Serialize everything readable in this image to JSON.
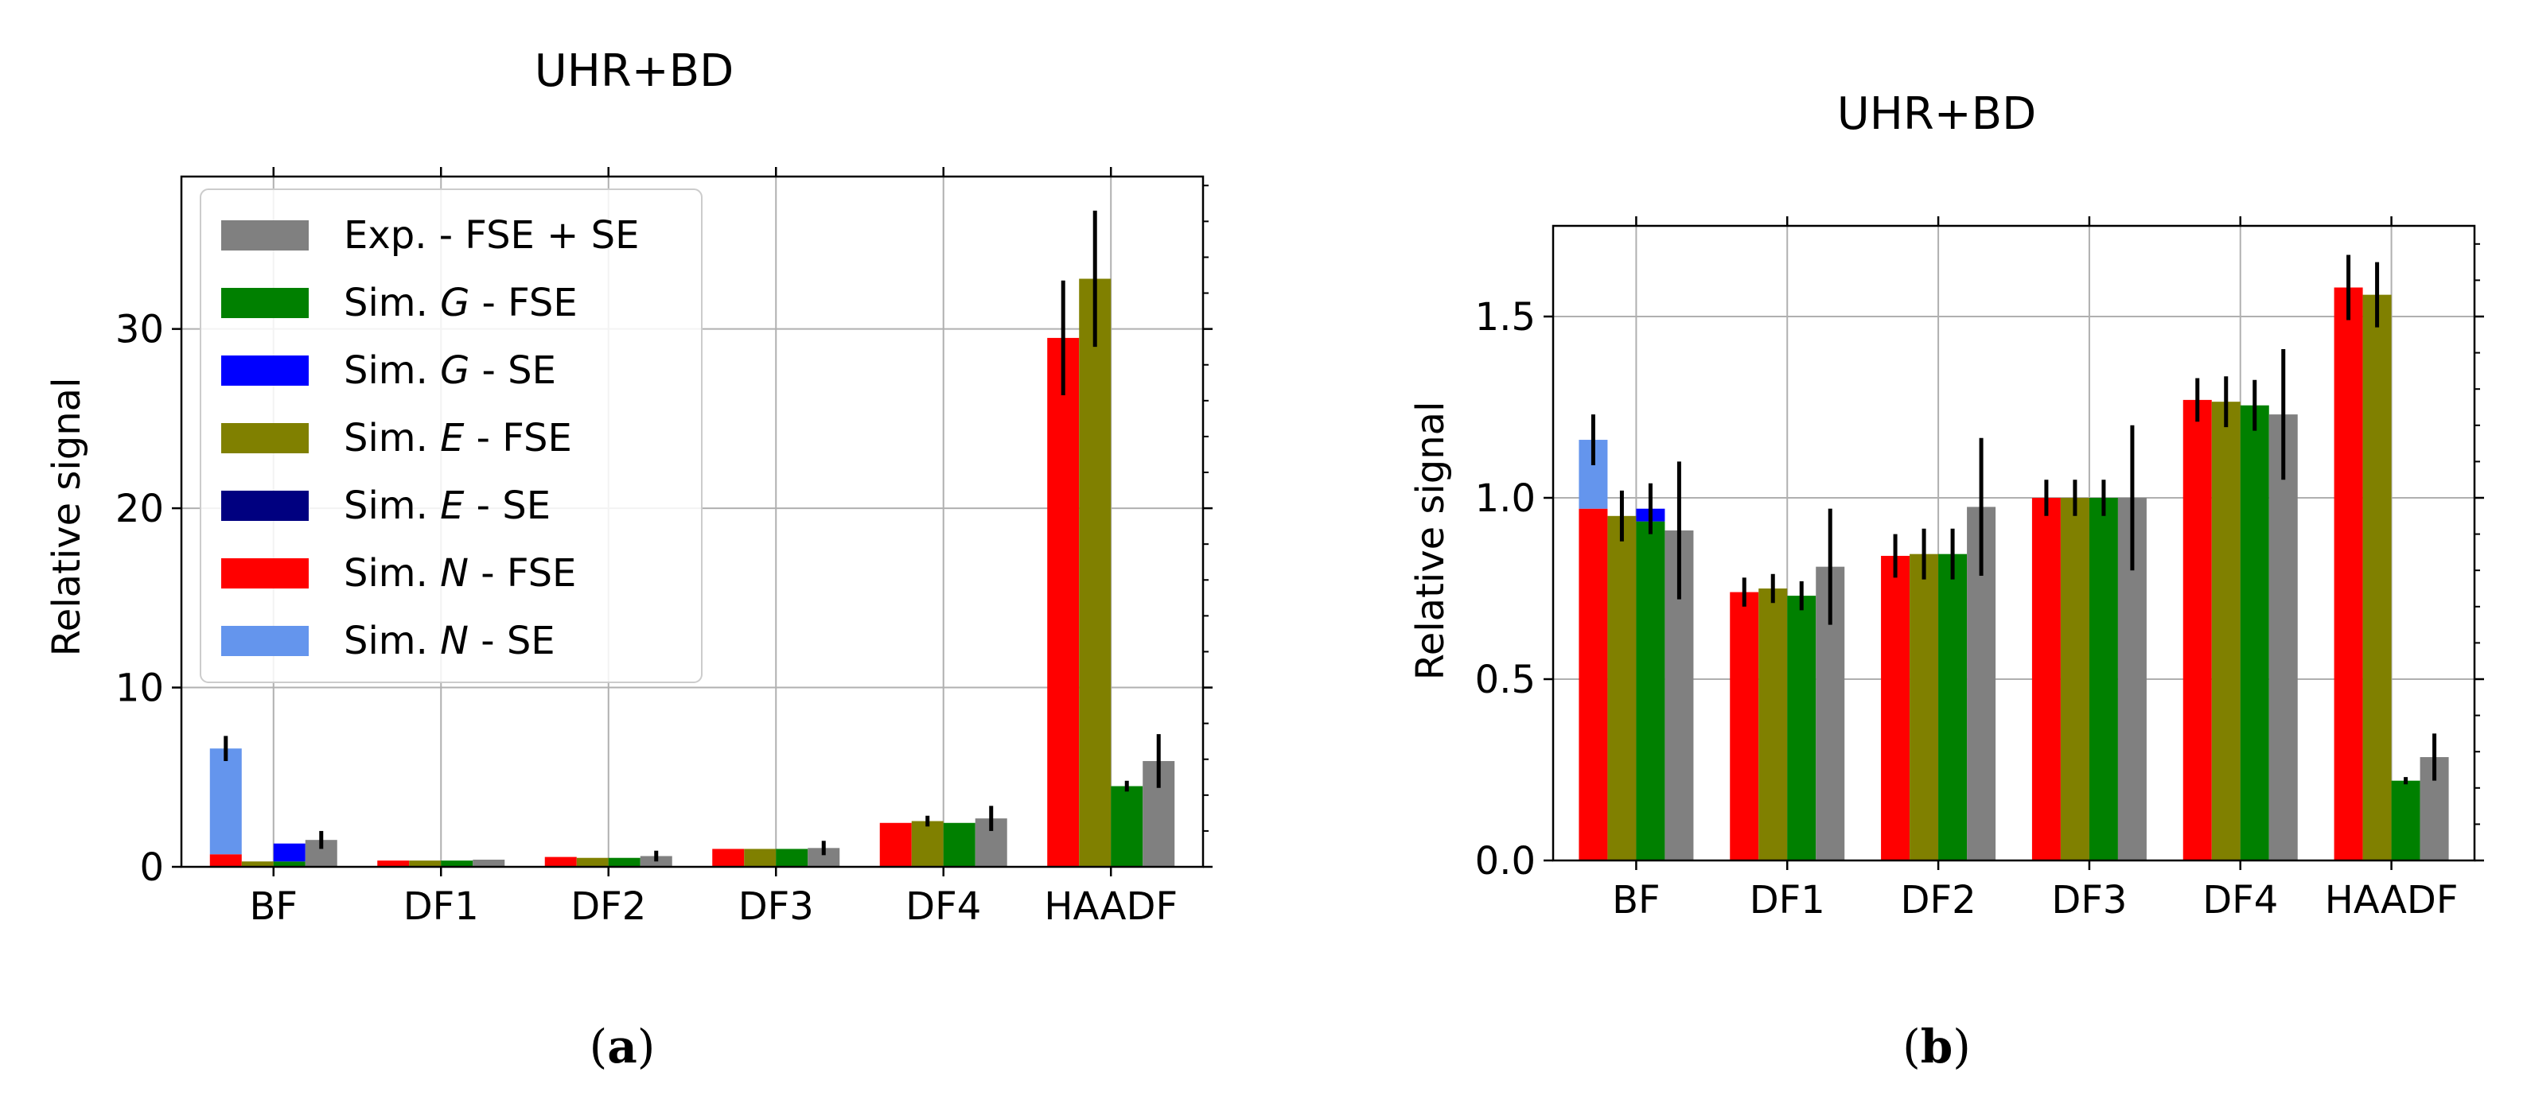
{
  "colors": {
    "exp_fse_se": "#808080",
    "sim_g_fse": "#008000",
    "sim_g_se": "#0000ff",
    "sim_e_fse": "#808000",
    "sim_e_se": "#000080",
    "sim_n_fse": "#ff0000",
    "sim_n_se": "#6495ed",
    "error_bar": "#000000",
    "grid": "#b0b0b0"
  },
  "legend": [
    {
      "key": "exp_fse_se",
      "prefix": "Exp. - FSE + SE",
      "var": "",
      "suffix": ""
    },
    {
      "key": "sim_g_fse",
      "prefix": "Sim. ",
      "var": "G",
      "suffix": " - FSE"
    },
    {
      "key": "sim_g_se",
      "prefix": "Sim. ",
      "var": "G",
      "suffix": " - SE"
    },
    {
      "key": "sim_e_fse",
      "prefix": "Sim. ",
      "var": "E",
      "suffix": " - FSE"
    },
    {
      "key": "sim_e_se",
      "prefix": "Sim. ",
      "var": "E",
      "suffix": " - SE"
    },
    {
      "key": "sim_n_fse",
      "prefix": "Sim. ",
      "var": "N",
      "suffix": " - FSE"
    },
    {
      "key": "sim_n_se",
      "prefix": "Sim. ",
      "var": "N",
      "suffix": " - SE"
    }
  ],
  "chart_data": [
    {
      "panel": "(a)",
      "panel_letter": "a",
      "type": "bar",
      "title": "UHR+BD",
      "ylabel": "Relative signal",
      "xlabel": "",
      "ylim": [
        0,
        38.5
      ],
      "yticks": [
        0,
        10,
        20,
        30
      ],
      "ytick_labels": [
        "0",
        "10",
        "20",
        "30"
      ],
      "grid": true,
      "legend_location": "upper-left",
      "categories": [
        "BF",
        "DF1",
        "DF2",
        "DF3",
        "DF4",
        "HAADF"
      ],
      "series": [
        {
          "name": "Sim. N",
          "fse_key": "sim_n_fse",
          "se_key": "sim_n_se",
          "fse": [
            0.7,
            0.35,
            0.55,
            1.0,
            2.45,
            29.5
          ],
          "se": [
            5.9,
            0,
            0,
            0,
            0,
            0
          ],
          "err": [
            0.7,
            0,
            0,
            0,
            0,
            3.2
          ]
        },
        {
          "name": "Sim. E",
          "fse_key": "sim_e_fse",
          "se_key": "sim_e_se",
          "fse": [
            0.3,
            0.35,
            0.5,
            1.0,
            2.55,
            32.8
          ],
          "se": [
            0,
            0,
            0,
            0,
            0,
            0
          ],
          "err": [
            0,
            0,
            0,
            0,
            0.3,
            3.8
          ]
        },
        {
          "name": "Sim. G",
          "fse_key": "sim_g_fse",
          "se_key": "sim_g_se",
          "fse": [
            0.3,
            0.35,
            0.5,
            1.0,
            2.45,
            4.5
          ],
          "se": [
            1.0,
            0,
            0,
            0,
            0,
            0
          ],
          "err": [
            0,
            0,
            0,
            0,
            0,
            0.3
          ]
        },
        {
          "name": "Exp.",
          "fse_key": "exp_fse_se",
          "se_key": "exp_fse_se",
          "fse": [
            1.5,
            0.4,
            0.6,
            1.05,
            2.7,
            5.9
          ],
          "se": [
            0,
            0,
            0,
            0,
            0,
            0
          ],
          "err": [
            0.5,
            0,
            0.3,
            0.4,
            0.7,
            1.5
          ]
        }
      ]
    },
    {
      "panel": "(b)",
      "panel_letter": "b",
      "type": "bar",
      "title": "UHR+BD",
      "ylabel": "Relative signal",
      "xlabel": "",
      "ylim": [
        0,
        1.75
      ],
      "yticks": [
        0,
        0.5,
        1.0,
        1.5
      ],
      "ytick_labels": [
        "0.0",
        "0.5",
        "1.0",
        "1.5"
      ],
      "grid": true,
      "categories": [
        "BF",
        "DF1",
        "DF2",
        "DF3",
        "DF4",
        "HAADF"
      ],
      "series": [
        {
          "name": "Sim. N",
          "fse_key": "sim_n_fse",
          "se_key": "sim_n_se",
          "fse": [
            0.97,
            0.74,
            0.84,
            1.0,
            1.27,
            1.58
          ],
          "se": [
            0.19,
            0,
            0,
            0,
            0,
            0
          ],
          "err": [
            0.07,
            0.04,
            0.06,
            0.05,
            0.06,
            0.09
          ]
        },
        {
          "name": "Sim. E",
          "fse_key": "sim_e_fse",
          "se_key": "sim_e_se",
          "fse": [
            0.95,
            0.75,
            0.845,
            1.0,
            1.265,
            1.56
          ],
          "se": [
            0,
            0,
            0,
            0,
            0,
            0
          ],
          "err": [
            0.07,
            0.04,
            0.07,
            0.05,
            0.07,
            0.09
          ]
        },
        {
          "name": "Sim. G",
          "fse_key": "sim_g_fse",
          "se_key": "sim_g_se",
          "fse": [
            0.935,
            0.73,
            0.845,
            1.0,
            1.255,
            0.22
          ],
          "se": [
            0.035,
            0,
            0,
            0,
            0,
            0
          ],
          "err": [
            0.07,
            0.04,
            0.07,
            0.05,
            0.07,
            0.01
          ]
        },
        {
          "name": "Exp.",
          "fse_key": "exp_fse_se",
          "se_key": "exp_fse_se",
          "fse": [
            0.91,
            0.81,
            0.975,
            1.0,
            1.23,
            0.285
          ],
          "se": [
            0,
            0,
            0,
            0,
            0,
            0
          ],
          "err": [
            0.19,
            0.16,
            0.19,
            0.2,
            0.18,
            0.065
          ]
        }
      ]
    }
  ]
}
